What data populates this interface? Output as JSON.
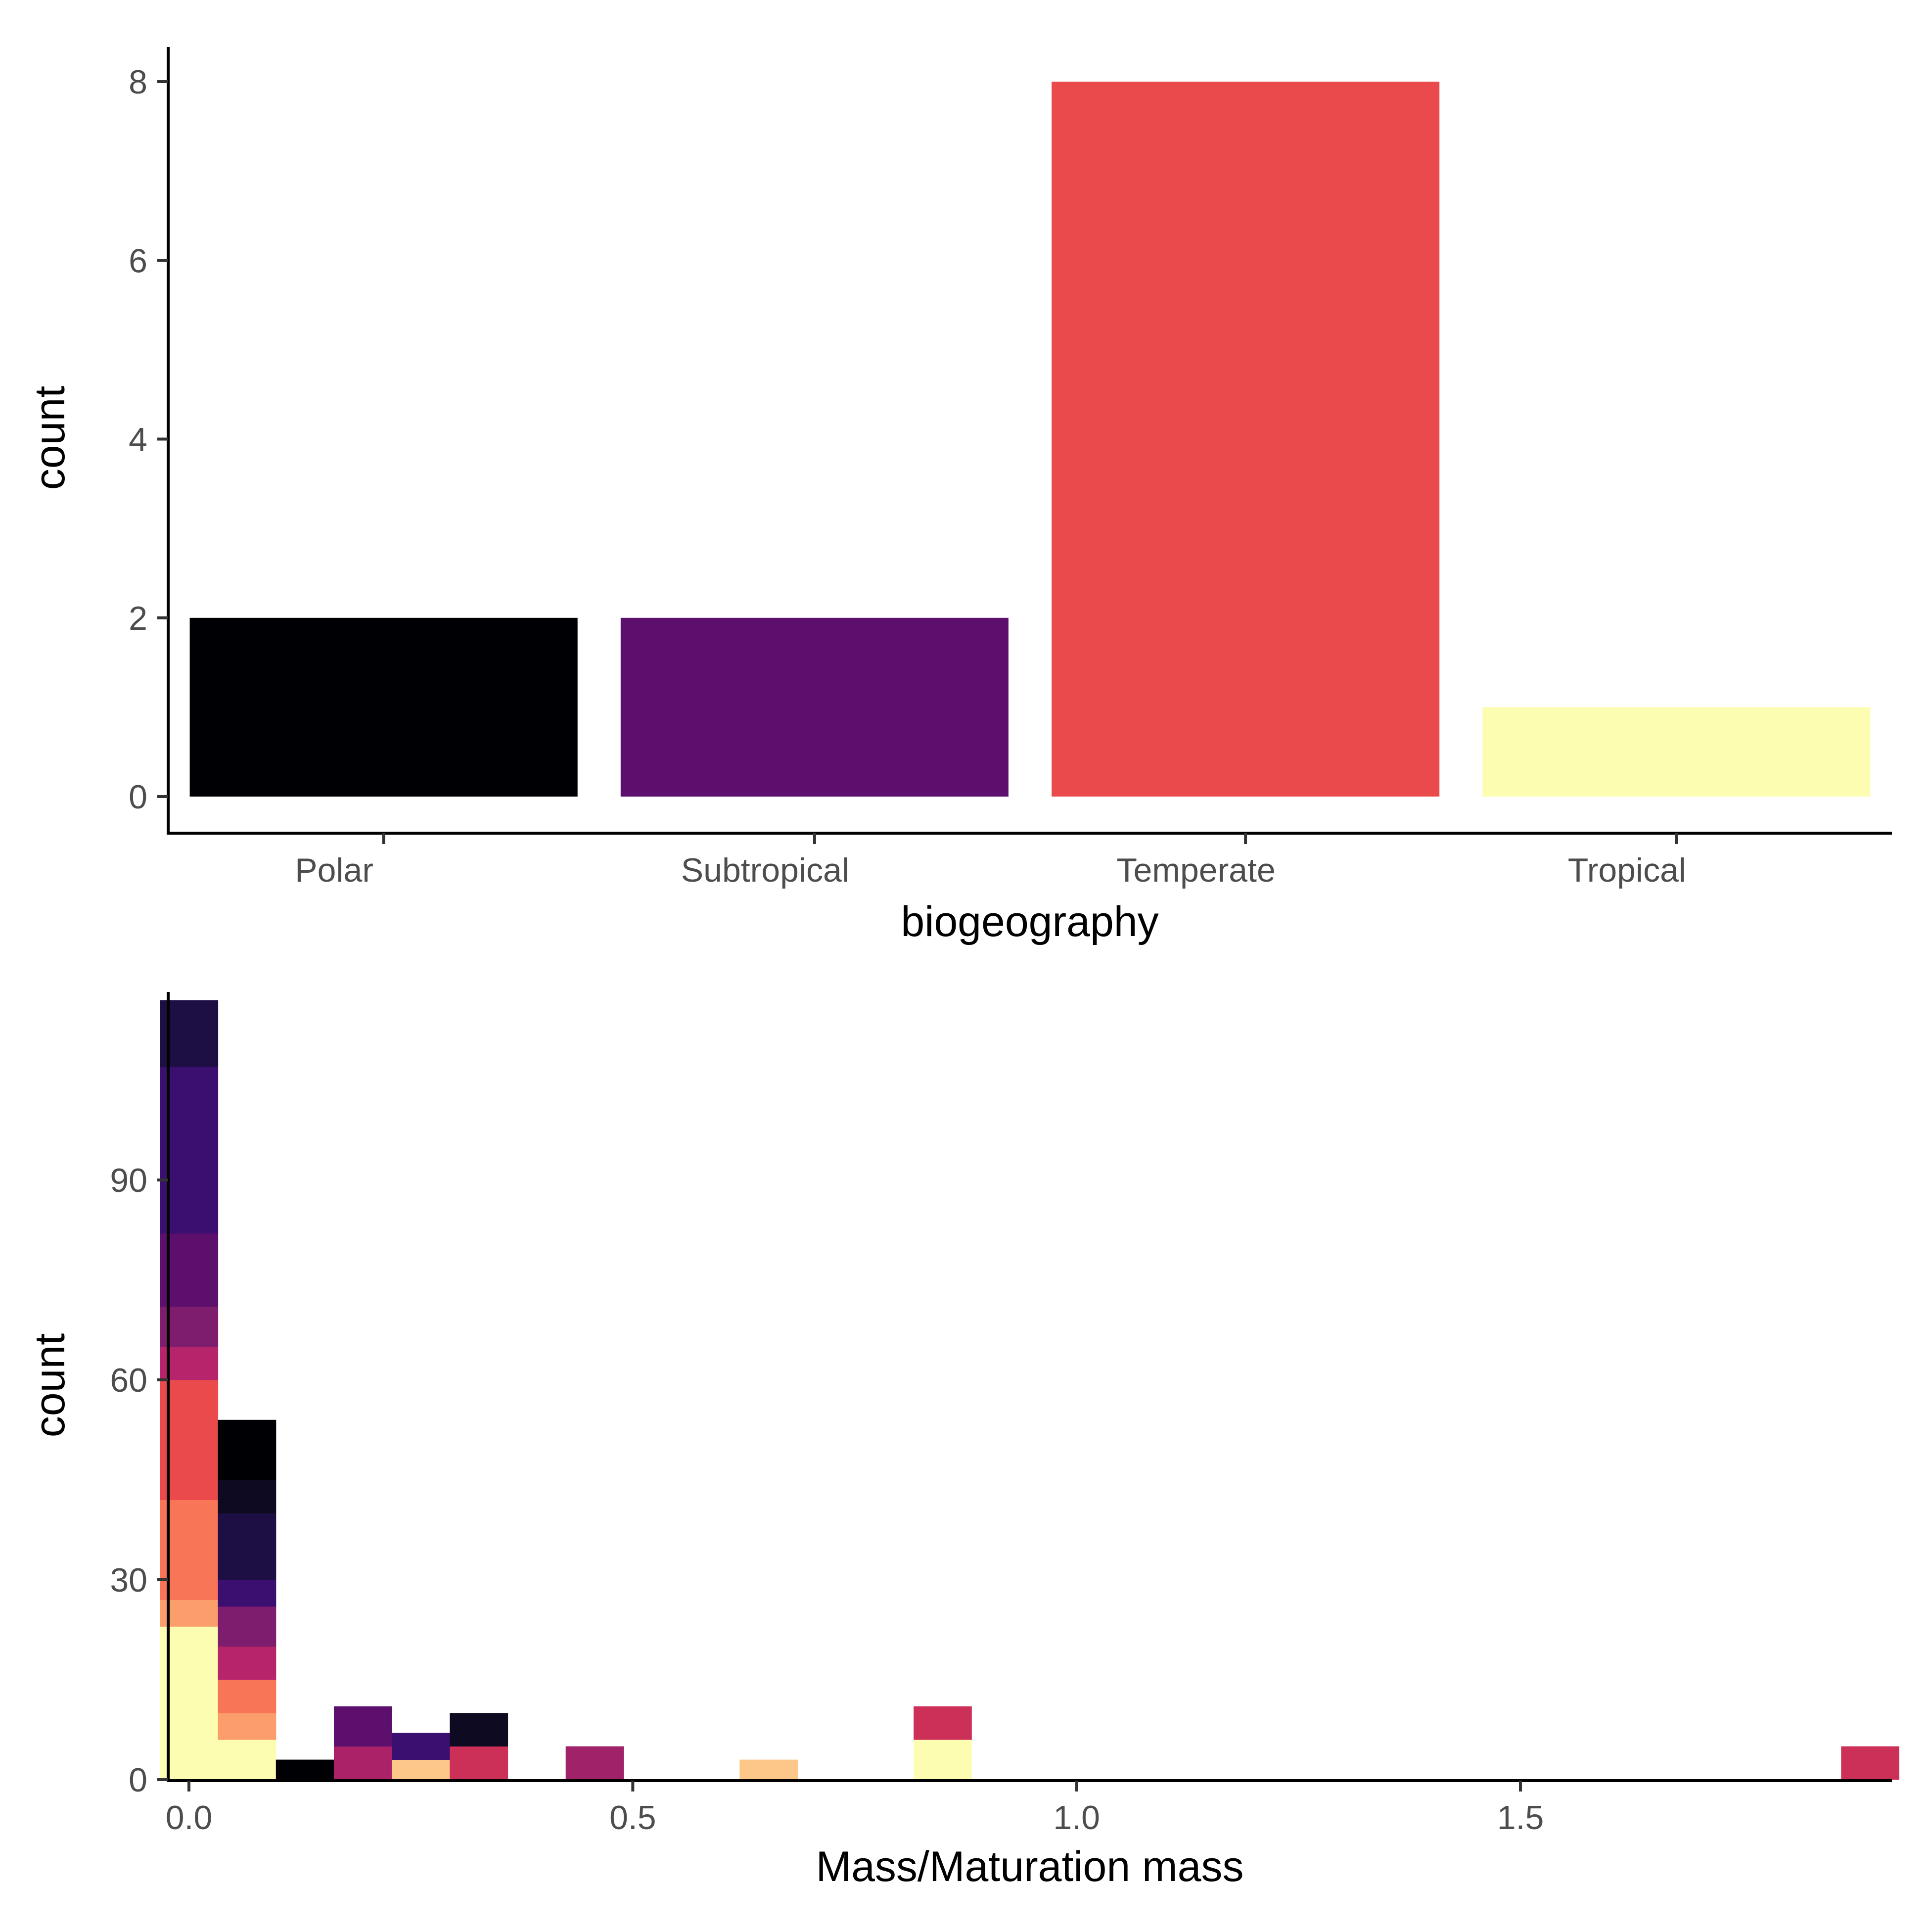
{
  "chart_data": [
    {
      "type": "bar",
      "xlabel": "biogeography",
      "ylabel": "count",
      "categories": [
        "Polar",
        "Subtropical",
        "Temperate",
        "Tropical"
      ],
      "values": [
        2,
        2,
        8,
        1
      ],
      "colors": [
        "#000004",
        "#5D0F6D",
        "#EB4A4C",
        "#FCFDB0"
      ],
      "ylim": [
        0,
        8.4
      ],
      "yticks": [
        0,
        2,
        4,
        6,
        8
      ],
      "grid": false,
      "legend": "none"
    },
    {
      "type": "bar",
      "subtype": "stacked-histogram",
      "xlabel": "Mass/Maturation mass",
      "ylabel": "count",
      "xlim": [
        -0.03,
        1.93
      ],
      "ylim": [
        0,
        117
      ],
      "xticks": [
        0.0,
        0.5,
        1.0,
        1.5
      ],
      "xtick_labels": [
        "0.0",
        "0.5",
        "1.0",
        "1.5"
      ],
      "yticks": [
        0,
        30,
        60,
        90
      ],
      "bin_width": 0.0653,
      "grid": false,
      "legend": "none",
      "bins": [
        {
          "x": 0.0,
          "segments": [
            {
              "count": 23,
              "color": "#FCFDB0"
            },
            {
              "count": 4,
              "color": "#FC9E6C"
            },
            {
              "count": 15,
              "color": "#F87557"
            },
            {
              "count": 18,
              "color": "#EB4A4C"
            },
            {
              "count": 5,
              "color": "#B6246C"
            },
            {
              "count": 6,
              "color": "#7E1D6E"
            },
            {
              "count": 11,
              "color": "#5D0F6D"
            },
            {
              "count": 25,
              "color": "#3B0F70"
            },
            {
              "count": 10,
              "color": "#1D0F43"
            }
          ]
        },
        {
          "x": 0.0653,
          "segments": [
            {
              "count": 6,
              "color": "#FCFDB0"
            },
            {
              "count": 4,
              "color": "#FC9E6C"
            },
            {
              "count": 5,
              "color": "#F87557"
            },
            {
              "count": 5,
              "color": "#B6246C"
            },
            {
              "count": 6,
              "color": "#7E1D6E"
            },
            {
              "count": 4,
              "color": "#3B0F70"
            },
            {
              "count": 10,
              "color": "#1D0F43"
            },
            {
              "count": 5,
              "color": "#0E0A21"
            },
            {
              "count": 9,
              "color": "#000004"
            }
          ]
        },
        {
          "x": 0.1306,
          "segments": [
            {
              "count": 3,
              "color": "#000004"
            }
          ]
        },
        {
          "x": 0.1959,
          "segments": [
            {
              "count": 5,
              "color": "#AB2268"
            },
            {
              "count": 6,
              "color": "#5D0F6D"
            }
          ]
        },
        {
          "x": 0.2612,
          "segments": [
            {
              "count": 3,
              "color": "#FDC78A"
            },
            {
              "count": 4,
              "color": "#3B0F70"
            }
          ]
        },
        {
          "x": 0.3265,
          "segments": [
            {
              "count": 5,
              "color": "#CC3059"
            },
            {
              "count": 5,
              "color": "#0E0A21"
            }
          ]
        },
        {
          "x": 0.4571,
          "segments": [
            {
              "count": 5,
              "color": "#A0236A"
            }
          ]
        },
        {
          "x": 0.653,
          "segments": [
            {
              "count": 3,
              "color": "#FDC78A"
            }
          ]
        },
        {
          "x": 0.849,
          "segments": [
            {
              "count": 6,
              "color": "#FCFDB0"
            },
            {
              "count": 5,
              "color": "#CC3059"
            }
          ]
        },
        {
          "x": 1.8939,
          "segments": [
            {
              "count": 5,
              "color": "#CC3059"
            }
          ]
        }
      ]
    }
  ]
}
